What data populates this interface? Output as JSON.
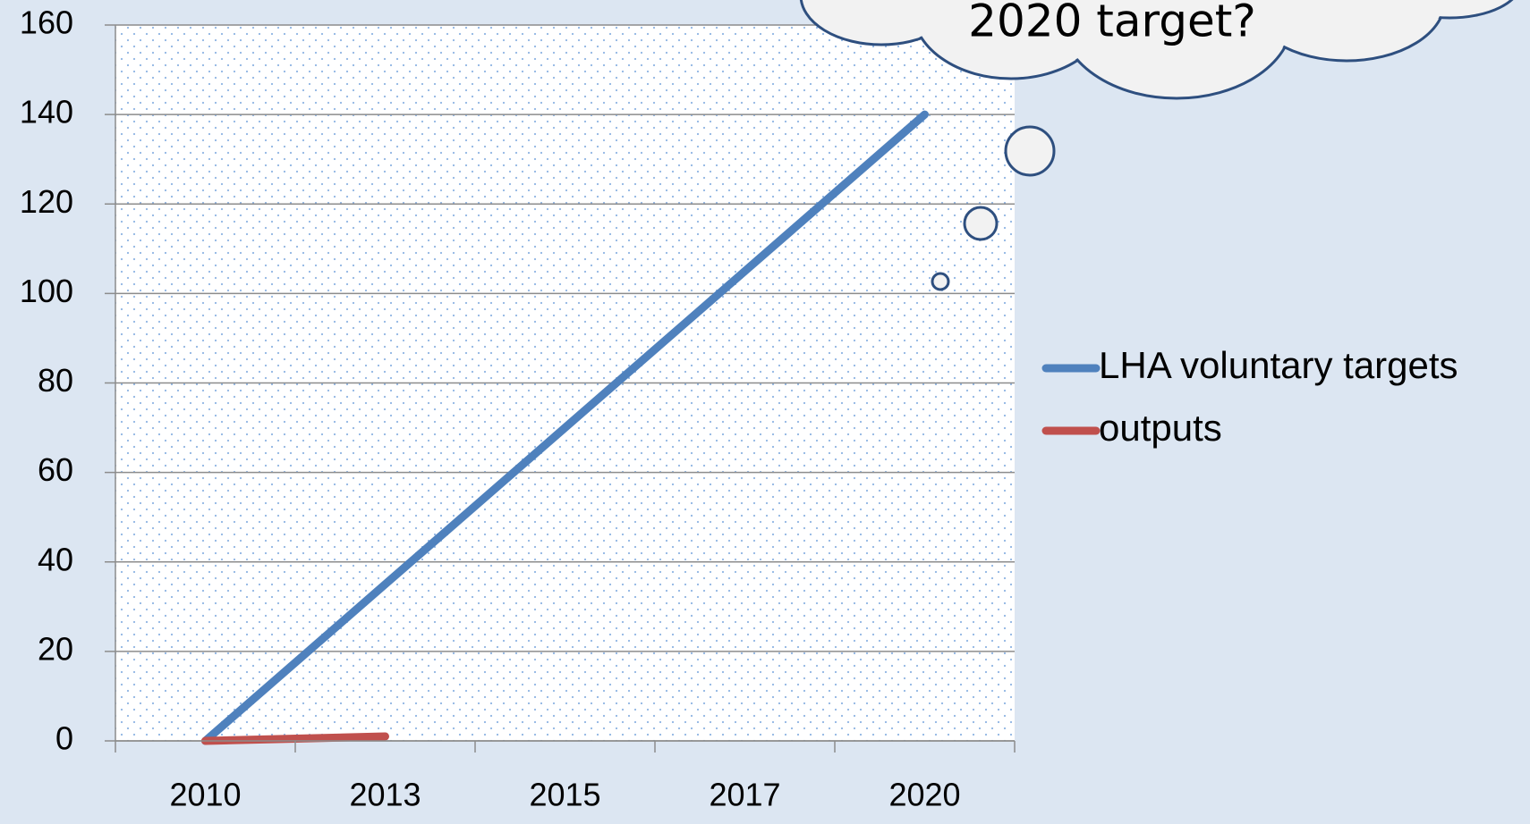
{
  "chart_data": {
    "type": "line",
    "categories": [
      "2010",
      "2013",
      "2015",
      "2017",
      "2020"
    ],
    "series": [
      {
        "name": "LHA voluntary targets",
        "color": "#4f81bd",
        "values": [
          0,
          35,
          70,
          105,
          140
        ]
      },
      {
        "name": "outputs",
        "color": "#c0504d",
        "values": [
          0,
          1,
          null,
          null,
          null
        ]
      }
    ],
    "ylim": [
      0,
      160
    ],
    "yticks": [
      0,
      20,
      40,
      60,
      80,
      100,
      120,
      140,
      160
    ],
    "grid": true,
    "legend": "right",
    "annotation": "2020 target?"
  }
}
